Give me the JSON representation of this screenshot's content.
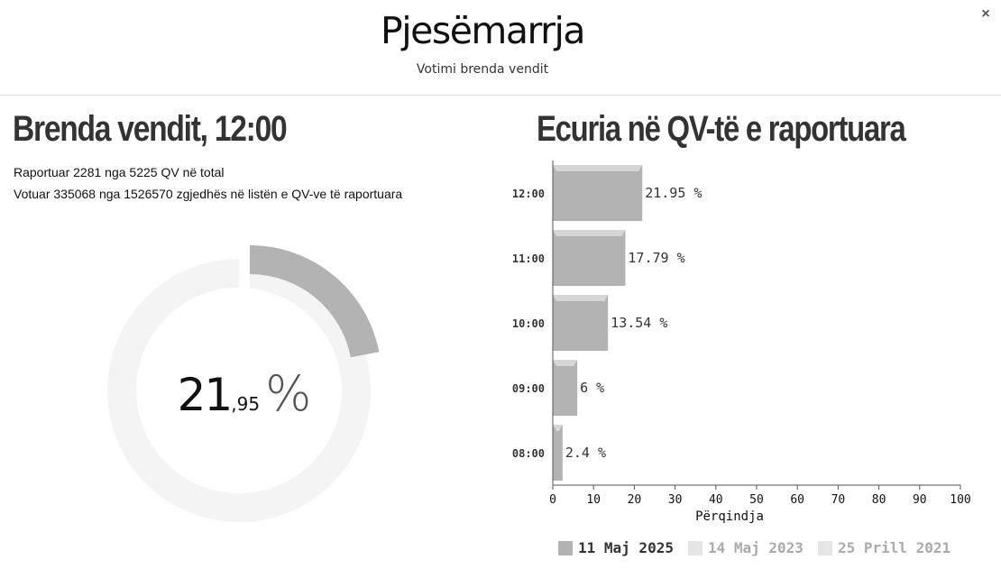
{
  "header": {
    "title": "Pjesëmarrja",
    "subtitle": "Votimi brenda vendit",
    "close_label": "×"
  },
  "left": {
    "heading": "Brenda vendit, 12:00",
    "reported_line": "Raportuar 2281 nga 5225 QV në total",
    "voted_line": "Votuar 335068 nga 1526570 zgjedhës në listën e QV-ve të raportuara",
    "turnout_percent": 21.95,
    "turnout_int": "21",
    "turnout_dec": ",95",
    "turnout_unit": "%"
  },
  "right": {
    "heading": "Ecuria në QV-të e raportuara"
  },
  "colors": {
    "bar": "#b3b3b3",
    "donut_track": "#f5f4f4",
    "legend_active": "#b3b3b3",
    "legend_inactive": "#e6e6e6",
    "legend_inactive_text": "#aaaaaa"
  },
  "chart_data": {
    "type": "bar",
    "orientation": "horizontal",
    "categories": [
      "12:00",
      "11:00",
      "10:00",
      "09:00",
      "08:00"
    ],
    "values": [
      21.95,
      17.79,
      13.54,
      6,
      2.4
    ],
    "value_labels": [
      "21.95 %",
      "17.79 %",
      "13.54 %",
      "6 %",
      "2.4 %"
    ],
    "xlabel": "Përqindja",
    "xlim": [
      0,
      100
    ],
    "xticks": [
      "0",
      "10",
      "20",
      "30",
      "40",
      "50",
      "60",
      "70",
      "80",
      "90",
      "100"
    ],
    "legend": [
      {
        "name": "11 Maj 2025",
        "active": true
      },
      {
        "name": "14 Maj 2023",
        "active": false
      },
      {
        "name": "25 Prill 2021",
        "active": false
      }
    ],
    "legend_position": "bottom"
  }
}
